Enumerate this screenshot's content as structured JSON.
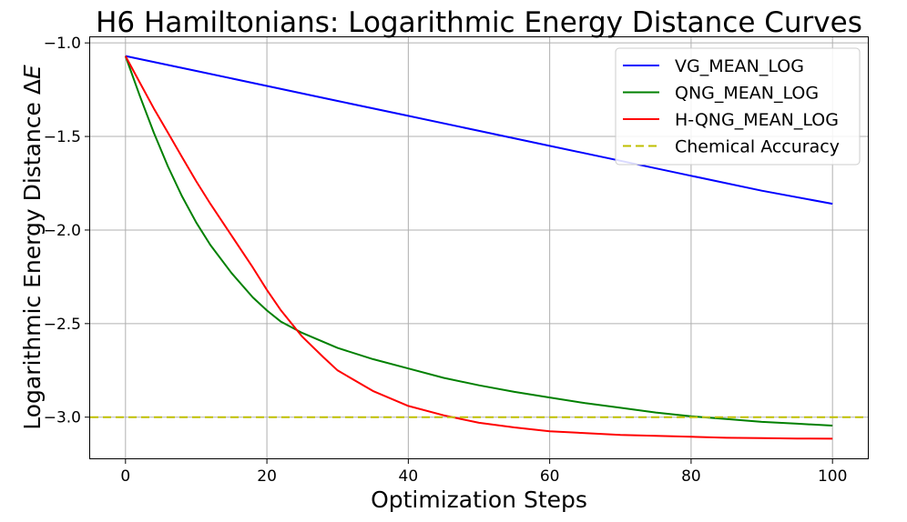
{
  "chart_data": {
    "type": "line",
    "title": "H6 Hamiltonians: Logarithmic Energy Distance Curves",
    "xlabel": "Optimization Steps",
    "ylabel_prefix": "Logarithmic Energy Distance Δ",
    "ylabel_var": "E",
    "xlim": [
      -5,
      105
    ],
    "ylim": [
      -3.22,
      -0.97
    ],
    "x_ticks": [
      0,
      20,
      40,
      60,
      80,
      100
    ],
    "x_tick_labels": [
      "0",
      "20",
      "40",
      "60",
      "80",
      "100"
    ],
    "y_ticks": [
      -1.0,
      -1.5,
      -2.0,
      -2.5,
      -3.0
    ],
    "y_tick_labels": [
      "−1.0",
      "−1.5",
      "−2.0",
      "−2.5",
      "−3.0"
    ],
    "grid": true,
    "legend_position": "top-right",
    "series": [
      {
        "name": "VG_MEAN_LOG",
        "color": "#0000ff",
        "style": "solid",
        "x": [
          0,
          10,
          20,
          30,
          40,
          50,
          60,
          70,
          80,
          90,
          100
        ],
        "y": [
          -1.07,
          -1.15,
          -1.23,
          -1.31,
          -1.39,
          -1.47,
          -1.55,
          -1.63,
          -1.71,
          -1.79,
          -1.86
        ]
      },
      {
        "name": "QNG_MEAN_LOG",
        "color": "#008000",
        "style": "solid",
        "x": [
          0,
          2,
          4,
          6,
          8,
          10,
          12,
          15,
          18,
          20,
          22,
          25,
          30,
          35,
          40,
          45,
          50,
          55,
          60,
          65,
          70,
          75,
          80,
          85,
          90,
          95,
          100
        ],
        "y": [
          -1.07,
          -1.28,
          -1.48,
          -1.66,
          -1.82,
          -1.96,
          -2.08,
          -2.23,
          -2.36,
          -2.43,
          -2.49,
          -2.55,
          -2.63,
          -2.69,
          -2.74,
          -2.79,
          -2.83,
          -2.865,
          -2.895,
          -2.925,
          -2.95,
          -2.975,
          -2.995,
          -3.01,
          -3.025,
          -3.035,
          -3.045
        ]
      },
      {
        "name": "H-QNG_MEAN_LOG",
        "color": "#ff0000",
        "style": "solid",
        "x": [
          0,
          2,
          4,
          6,
          8,
          10,
          12,
          15,
          18,
          20,
          22,
          25,
          28,
          30,
          35,
          40,
          45,
          50,
          55,
          60,
          65,
          70,
          75,
          80,
          85,
          90,
          95,
          100
        ],
        "y": [
          -1.07,
          -1.21,
          -1.35,
          -1.48,
          -1.61,
          -1.74,
          -1.86,
          -2.03,
          -2.2,
          -2.32,
          -2.43,
          -2.57,
          -2.68,
          -2.75,
          -2.86,
          -2.94,
          -2.99,
          -3.03,
          -3.055,
          -3.075,
          -3.085,
          -3.095,
          -3.1,
          -3.105,
          -3.11,
          -3.112,
          -3.114,
          -3.115
        ]
      },
      {
        "name": "Chemical Accuracy",
        "color": "#bfbf00",
        "style": "dashed",
        "y_const": -3.0
      }
    ]
  }
}
